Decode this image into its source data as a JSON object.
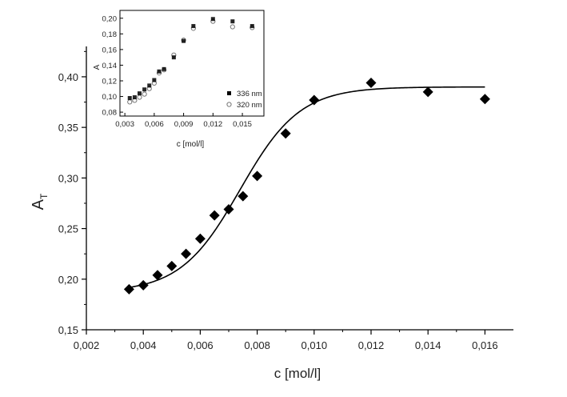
{
  "chart_data": [
    {
      "type": "scatter",
      "xlabel": "c [mol/l]",
      "ylabel": "A",
      "ylabel_sub": "T",
      "xlim": [
        0.002,
        0.017
      ],
      "ylim": [
        0.15,
        0.43
      ],
      "x_ticks": [
        0.002,
        0.004,
        0.006,
        0.008,
        0.01,
        0.012,
        0.014,
        0.016
      ],
      "x_tick_labels": [
        "0,002",
        "0,004",
        "0,006",
        "0,008",
        "0,010",
        "0,012",
        "0,014",
        "0,016"
      ],
      "y_ticks": [
        0.15,
        0.2,
        0.25,
        0.3,
        0.35,
        0.4
      ],
      "y_tick_labels": [
        "0,15",
        "0,20",
        "0,25",
        "0,30",
        "0,35",
        "0,40"
      ],
      "grid": false,
      "series": [
        {
          "marker": "diamond",
          "color": "#000000",
          "x": [
            0.0035,
            0.004,
            0.0045,
            0.005,
            0.0055,
            0.006,
            0.0065,
            0.007,
            0.0075,
            0.008,
            0.009,
            0.01,
            0.012,
            0.014,
            0.016
          ],
          "y": [
            0.19,
            0.194,
            0.204,
            0.213,
            0.225,
            0.24,
            0.263,
            0.269,
            0.282,
            0.302,
            0.344,
            0.377,
            0.394,
            0.385,
            0.378
          ]
        },
        {
          "marker": "line",
          "color": "#000000",
          "fit": {
            "A1": 0.187,
            "A2": 0.39,
            "x0": 0.0074,
            "dx": 0.00105
          }
        }
      ]
    },
    {
      "type": "scatter",
      "xlabel": "c [mol/l]",
      "ylabel": "A",
      "xlim": [
        0.0025,
        0.0172
      ],
      "ylim": [
        0.075,
        0.21
      ],
      "x_ticks": [
        0.003,
        0.006,
        0.009,
        0.012,
        0.015
      ],
      "x_tick_labels": [
        "0,003",
        "0,006",
        "0,009",
        "0,012",
        "0,015"
      ],
      "y_ticks": [
        0.08,
        0.1,
        0.12,
        0.14,
        0.16,
        0.18,
        0.2
      ],
      "y_tick_labels": [
        "0,08",
        "0,10",
        "0,12",
        "0,14",
        "0,16",
        "0,18",
        "0,20"
      ],
      "legend_position": "bottom-right",
      "grid": false,
      "series": [
        {
          "name": "336 nm",
          "marker": "square",
          "color": "#000000",
          "x": [
            0.0035,
            0.004,
            0.0045,
            0.005,
            0.0055,
            0.006,
            0.0065,
            0.007,
            0.008,
            0.009,
            0.01,
            0.012,
            0.014,
            0.016
          ],
          "y": [
            0.098,
            0.099,
            0.104,
            0.109,
            0.114,
            0.121,
            0.132,
            0.135,
            0.15,
            0.171,
            0.19,
            0.199,
            0.196,
            0.19
          ]
        },
        {
          "name": "320 nm",
          "marker": "circle-open",
          "color": "#777777",
          "x": [
            0.0035,
            0.004,
            0.0045,
            0.005,
            0.0055,
            0.006,
            0.0065,
            0.007,
            0.008,
            0.009,
            0.01,
            0.012,
            0.014,
            0.016
          ],
          "y": [
            0.093,
            0.095,
            0.099,
            0.103,
            0.11,
            0.117,
            0.13,
            0.134,
            0.153,
            0.172,
            0.187,
            0.196,
            0.189,
            0.188
          ]
        }
      ]
    }
  ]
}
